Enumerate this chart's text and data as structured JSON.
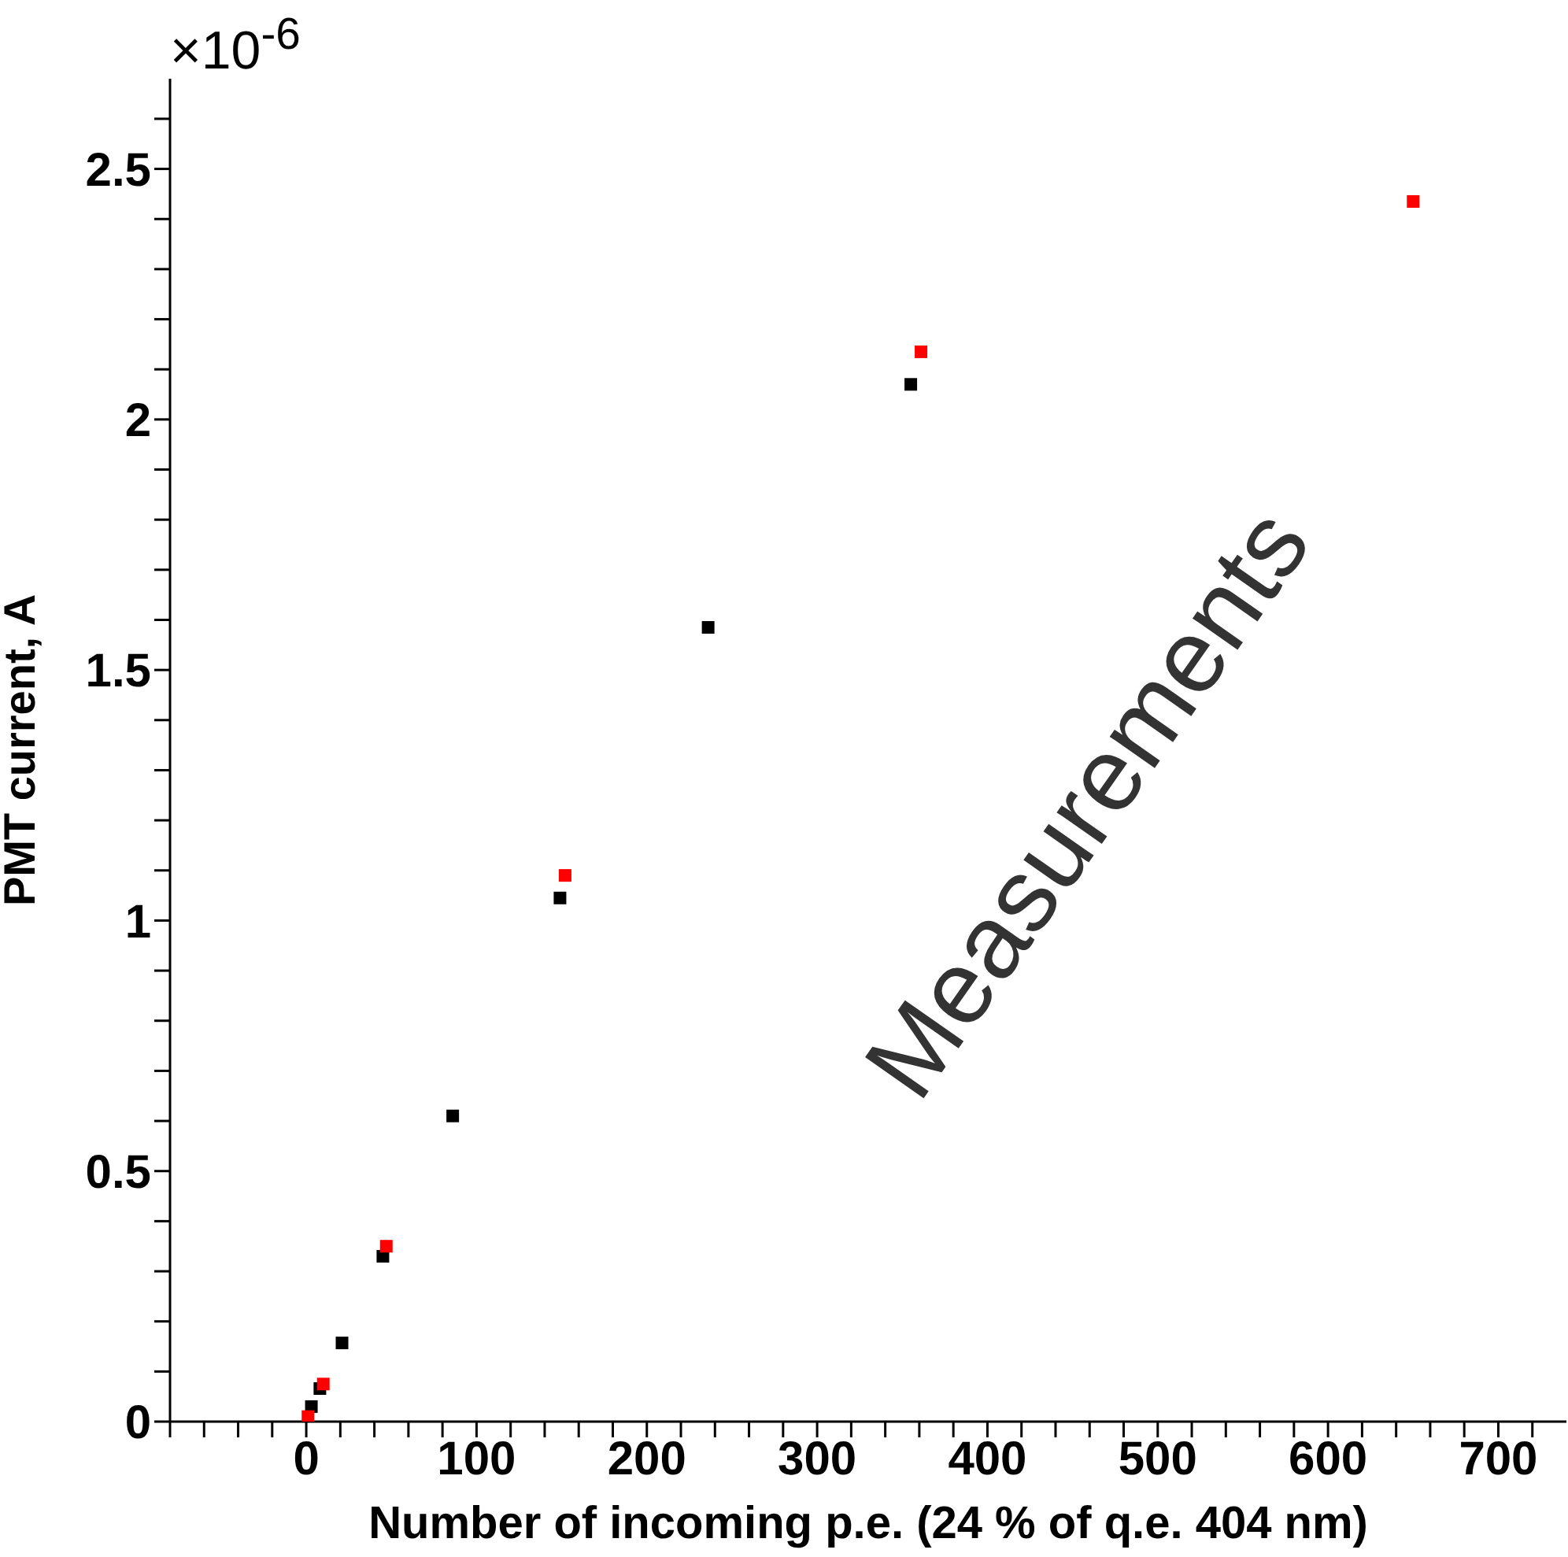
{
  "chart_data": {
    "type": "scatter",
    "xlabel": "Number of incoming p.e. (24 % of q.e.    404 nm)",
    "ylabel": "PMT current, A",
    "annotations": [
      "×10$^{-6}$",
      "Measurements"
    ],
    "series": [
      {
        "color": "#000000",
        "x": [
          3,
          8,
          21,
          45,
          86,
          149,
          236,
          355
        ],
        "values": [
          0.03,
          0.066,
          0.157,
          0.33,
          0.61,
          1.045,
          1.585,
          2.07
        ]
      },
      {
        "color": "#ff0000",
        "x": [
          1,
          10,
          47,
          152,
          361,
          650
        ],
        "values": [
          0.01,
          0.075,
          0.35,
          1.09,
          2.135,
          2.435
        ]
      }
    ],
    "xlim": [
      -80,
      740
    ],
    "ylim": [
      0,
      2.68
    ],
    "xticks": [
      {
        "value": -80,
        "label": null
      },
      {
        "value": -60,
        "label": null
      },
      {
        "value": -40,
        "label": null
      },
      {
        "value": -20,
        "label": null
      },
      0,
      {
        "value": 20,
        "label": null
      },
      {
        "value": 40,
        "label": null
      },
      {
        "value": 60,
        "label": null
      },
      {
        "value": 80,
        "label": null
      },
      100,
      {
        "value": 120,
        "label": null
      },
      {
        "value": 140,
        "label": null
      },
      {
        "value": 160,
        "label": null
      },
      {
        "value": 180,
        "label": null
      },
      200,
      {
        "value": 220,
        "label": null
      },
      {
        "value": 240,
        "label": null
      },
      {
        "value": 260,
        "label": null
      },
      {
        "value": 280,
        "label": null
      },
      300,
      {
        "value": 320,
        "label": null
      },
      {
        "value": 340,
        "label": null
      },
      {
        "value": 360,
        "label": null
      },
      {
        "value": 380,
        "label": null
      },
      400,
      {
        "value": 420,
        "label": null
      },
      {
        "value": 440,
        "label": null
      },
      {
        "value": 460,
        "label": null
      },
      {
        "value": 480,
        "label": null
      },
      500,
      {
        "value": 520,
        "label": null
      },
      {
        "value": 540,
        "label": null
      },
      {
        "value": 560,
        "label": null
      },
      {
        "value": 580,
        "label": null
      },
      600,
      {
        "value": 620,
        "label": null
      },
      {
        "value": 640,
        "label": null
      },
      {
        "value": 660,
        "label": null
      },
      {
        "value": 680,
        "label": null
      },
      700,
      {
        "value": 720,
        "label": null
      }
    ],
    "yticks": [
      0,
      {
        "value": 0.1,
        "label": null
      },
      {
        "value": 0.2,
        "label": null
      },
      {
        "value": 0.3,
        "label": null
      },
      {
        "value": 0.4,
        "label": null
      },
      0.5,
      {
        "value": 0.6,
        "label": null
      },
      {
        "value": 0.7,
        "label": null
      },
      {
        "value": 0.8,
        "label": null
      },
      {
        "value": 0.9,
        "label": null
      },
      1,
      {
        "value": 1.1,
        "label": null
      },
      {
        "value": 1.2,
        "label": null
      },
      {
        "value": 1.3,
        "label": null
      },
      {
        "value": 1.4,
        "label": null
      },
      1.5,
      {
        "value": 1.6,
        "label": null
      },
      {
        "value": 1.7,
        "label": null
      },
      {
        "value": 1.8,
        "label": null
      },
      {
        "value": 1.9,
        "label": null
      },
      2,
      {
        "value": 2.1,
        "label": null
      },
      {
        "value": 2.2,
        "label": null
      },
      {
        "value": 2.3,
        "label": null
      },
      {
        "value": 2.4,
        "label": null
      },
      2.5,
      {
        "value": 2.6,
        "label": null
      }
    ],
    "grid": false,
    "legend": false,
    "marker": "square"
  }
}
